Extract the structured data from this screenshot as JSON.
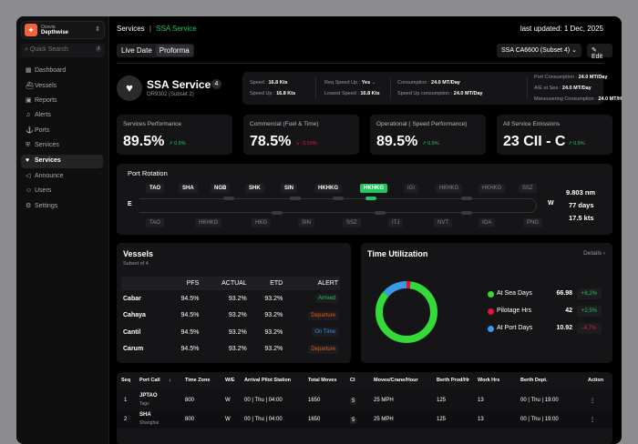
{
  "sidebar": {
    "org": "Ocevia",
    "product": "Depthwise",
    "search_placeholder": "Quick Search",
    "search_shortcut": "/",
    "items": [
      {
        "label": "Dashboard",
        "icon": "grid-icon"
      },
      {
        "label": "Vessels",
        "icon": "ship-icon"
      },
      {
        "label": "Reports",
        "icon": "report-icon"
      },
      {
        "label": "Alerts",
        "icon": "bell-icon"
      },
      {
        "label": "Ports",
        "icon": "port-icon"
      },
      {
        "label": "Services",
        "icon": "shield-icon"
      },
      {
        "label": "Services",
        "icon": "heart-shield-icon",
        "active": true
      },
      {
        "label": "Announce",
        "icon": "megaphone-icon"
      },
      {
        "label": "Users",
        "icon": "users-icon"
      },
      {
        "label": "Settings",
        "icon": "gear-icon"
      }
    ]
  },
  "header": {
    "breadcrumb_root": "Services",
    "breadcrumb_sep": "|",
    "breadcrumb_current": "SSA Service",
    "last_updated": "last updated: 1 Dec, 2025",
    "tabs": [
      "Live Date",
      "Proforma"
    ],
    "active_tab": "Proforma",
    "subset_select": "SSA CA6600 (Subset 4)",
    "edit_label": "Edit"
  },
  "service": {
    "title": "SSA Service",
    "count": "4",
    "subtitle": "OR9302 (Subset 2)",
    "info": [
      {
        "label": "Speed",
        "value": "16.8 Kts"
      },
      {
        "label": "Speed Up",
        "value": "16.8 Kts"
      },
      {
        "label": "Req Speed Up",
        "value": "Yes"
      },
      {
        "label": "Lowest Speed",
        "value": "16.8 Kts"
      },
      {
        "label": "Consumption",
        "value": "24.0 MT/Day"
      },
      {
        "label": "Speed Up consumption",
        "value": "24.0 MT/Day"
      },
      {
        "label": "Port Consumption",
        "value": "24.0 MT/Day"
      },
      {
        "label": "A/E at Sea",
        "value": "24.0 MT/Day"
      },
      {
        "label": "Maneuvering Consumption",
        "value": "24.0 MT/Hour"
      }
    ]
  },
  "kpis": [
    {
      "label": "Services Performance",
      "value": "89.5%",
      "change": "0.5%",
      "trend": "up"
    },
    {
      "label": "Commercial (Fuel & Time)",
      "value": "78.5%",
      "change": "-3.10%",
      "trend": "down"
    },
    {
      "label": "Operational ( Speed Performance)",
      "value": "89.5%",
      "change": "0.5%",
      "trend": "up"
    },
    {
      "label": "All Service Emissions",
      "value": "23 CII - C",
      "change": "0.5%",
      "trend": "up"
    }
  ],
  "port_rotation": {
    "title": "Port Rotation",
    "east": "E",
    "west": "W",
    "top": [
      "TAO",
      "SHA",
      "NGB",
      "SHK",
      "SIN",
      "HKHKG",
      "HKHKG",
      "IGI",
      "HKHKG",
      "HKHKG",
      "SSZ"
    ],
    "selected_index": 6,
    "bottom": [
      "TAO",
      "HKHKG",
      "HKG",
      "SIN",
      "SSZ",
      "ITJ",
      "NVT",
      "IOA",
      "PNG"
    ],
    "distance": "9.803 nm",
    "days": "77 days",
    "speed": "17.5 kts"
  },
  "vessels": {
    "title": "Vessels",
    "subtitle": "Subset of 4",
    "columns": [
      "",
      "PFS",
      "ACTUAL",
      "ETD",
      "ALERT"
    ],
    "rows": [
      [
        "Cabar",
        "94.5%",
        "93.2%",
        "93.2%",
        "Arrived"
      ],
      [
        "Cahaya",
        "94.5%",
        "93.2%",
        "93.2%",
        "Departure"
      ],
      [
        "Cantil",
        "94.5%",
        "93.2%",
        "93.2%",
        "On Time"
      ],
      [
        "Carum",
        "94.5%",
        "93.2%",
        "93.2%",
        "Departure"
      ]
    ],
    "alert_colors": {
      "Arrived": "#22c55e",
      "Departure": "#ea580c",
      "On Time": "#3b82f6"
    }
  },
  "time_utilization": {
    "title": "Time Utilization",
    "details_label": "Details",
    "items": [
      {
        "label": "At Sea Days",
        "value": "66.98",
        "change": "+8,2%",
        "color": "#34d93a",
        "trend": "up"
      },
      {
        "label": "Pilotage Hrs",
        "value": "42",
        "change": "+2,5%",
        "color": "#e0133c",
        "trend": "up"
      },
      {
        "label": "At Port Days",
        "value": "10.92",
        "change": "-4,7%",
        "color": "#3a9ae8",
        "trend": "down"
      }
    ]
  },
  "schedule": {
    "columns": [
      "Seq",
      "Port Call",
      "Time Zone",
      "W/E",
      "Arrival Pilot Station",
      "Total Moves",
      "CI",
      "Moves/Crane/Hour",
      "Berth Prod/Hr",
      "Work Hrs",
      "Berth Dept.",
      "Action"
    ],
    "rows": [
      [
        "1",
        "JPTAO",
        "Tago",
        "800",
        "W",
        "00 | Thu | 04:00",
        "1650",
        "5",
        "25 MPH",
        "125",
        "13",
        "00 | Thu | 19:00"
      ],
      [
        "2",
        "SHA",
        "Shanghai",
        "800",
        "W",
        "00 | Thu | 04:00",
        "1650",
        "5",
        "25 MPH",
        "125",
        "13",
        "00 | Thu | 19:00"
      ]
    ]
  }
}
